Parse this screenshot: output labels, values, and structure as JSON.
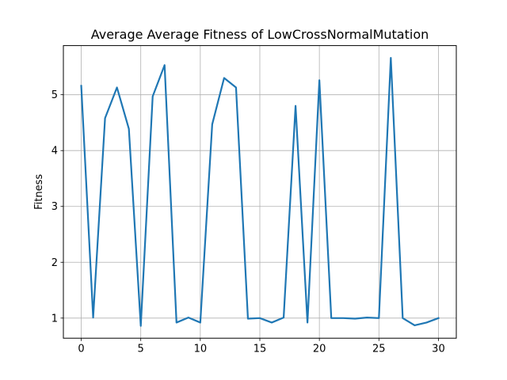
{
  "chart_data": {
    "type": "line",
    "title": "Average Average Fitness of LowCrossNormalMutation",
    "xlabel": "",
    "ylabel": "Fitness",
    "xlim": [
      -1.5,
      31.5
    ],
    "ylim": [
      0.64,
      5.88
    ],
    "xticks": [
      0,
      5,
      10,
      15,
      20,
      25,
      30
    ],
    "yticks": [
      1,
      2,
      3,
      4,
      5
    ],
    "grid": true,
    "series_color": "#1f77b4",
    "series": [
      {
        "x": [
          0,
          1,
          2,
          3,
          4,
          5,
          6,
          7,
          8,
          9,
          10,
          11,
          12,
          13,
          14,
          15,
          16,
          17,
          18,
          19,
          20,
          21,
          22,
          23,
          24,
          25,
          26,
          27,
          28,
          29,
          30
        ],
        "values": [
          5.16,
          1.01,
          4.58,
          5.13,
          4.39,
          0.86,
          4.97,
          5.53,
          0.92,
          1.01,
          0.92,
          4.47,
          5.3,
          5.13,
          0.99,
          1.0,
          0.92,
          1.01,
          4.8,
          0.92,
          5.26,
          1.0,
          1.0,
          0.99,
          1.01,
          1.0,
          5.66,
          1.0,
          0.87,
          0.92,
          1.0
        ]
      }
    ]
  }
}
